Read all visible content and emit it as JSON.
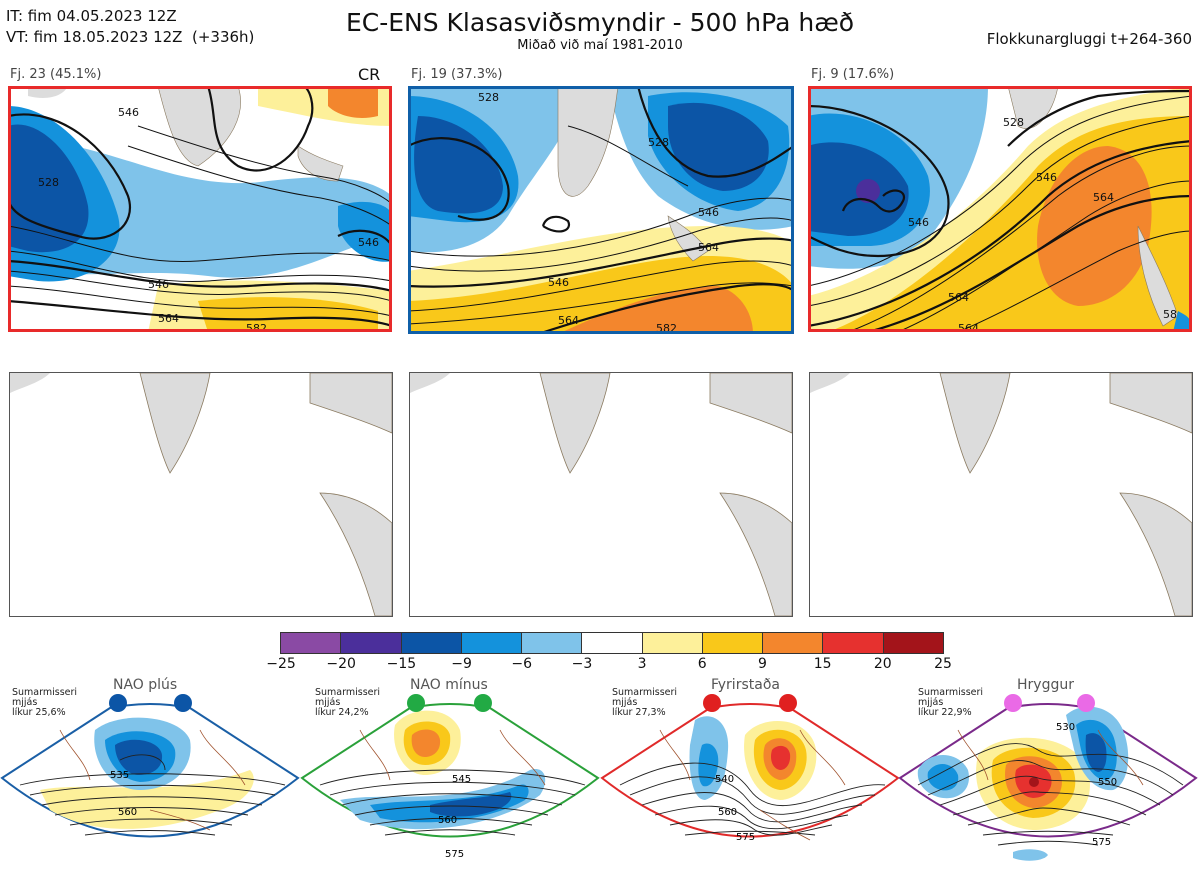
{
  "header": {
    "it_line": "IT: fim 04.05.2023 12Z",
    "vt_line": "VT: fim 18.05.2023 12Z  (+336h)",
    "title": "EC-ENS Klasasviðsmyndir - 500 hPa hæð",
    "subtitle": "Miðað við maí 1981-2010",
    "window": "Flokkunargluggi t+264-360"
  },
  "panels": [
    {
      "label": "Fj. 23 (45.1%)",
      "tag": "CR",
      "border": "#e82a2a",
      "contours": [
        "546",
        "528",
        "546",
        "546",
        "564",
        "582"
      ]
    },
    {
      "label": "Fj. 19 (37.3%)",
      "tag": "",
      "border": "#0f5fa8",
      "contours": [
        "528",
        "528",
        "546",
        "564",
        "546",
        "564",
        "582"
      ]
    },
    {
      "label": "Fj. 9 (17.6%)",
      "tag": "",
      "border": "#e82a2a",
      "contours": [
        "528",
        "546",
        "564",
        "546",
        "564",
        "564",
        "58"
      ]
    }
  ],
  "colorbar": {
    "colors": [
      "#8a4aa4",
      "#4b2f9b",
      "#0c55a6",
      "#1492dc",
      "#7fc3ea",
      "#ffffff",
      "#fdf09a",
      "#f9c81a",
      "#f3862d",
      "#e6312f",
      "#a3141a"
    ],
    "ticks": [
      "−25",
      "−20",
      "−15",
      "−9",
      "−6",
      "−3",
      "3",
      "6",
      "9",
      "15",
      "20",
      "25"
    ]
  },
  "regimes": [
    {
      "name": "NAO plús",
      "note": "Sumarmisseri\nmjjás\nlíkur 25,6%",
      "dot_color": "#0c55a6",
      "border": "#1a5fa6",
      "contours": [
        "535",
        "560"
      ]
    },
    {
      "name": "NAO mínus",
      "note": "Sumarmisseri\nmjjás\nlíkur 24,2%",
      "dot_color": "#22aa44",
      "border": "#2aa13a",
      "contours": [
        "545",
        "560",
        "575"
      ]
    },
    {
      "name": "Fyrirstaða",
      "note": "Sumarmisseri\nmjjás\nlíkur 27,3%",
      "dot_color": "#e02020",
      "border": "#e02a2a",
      "contours": [
        "540",
        "560",
        "575"
      ]
    },
    {
      "name": "Hryggur",
      "note": "Sumarmisseri\nmjjás\nlíkur 22,9%",
      "dot_color": "#ea6ae6",
      "border": "#7a2a8a",
      "contours": [
        "530",
        "550",
        "575"
      ]
    }
  ]
}
